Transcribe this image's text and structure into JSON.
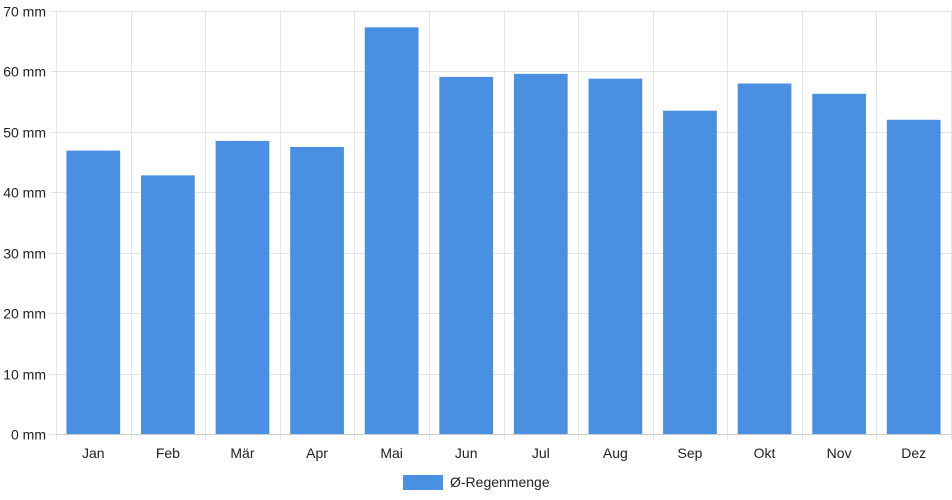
{
  "chart_data": {
    "type": "bar",
    "categories": [
      "Jan",
      "Feb",
      "Mär",
      "Apr",
      "Mai",
      "Jun",
      "Jul",
      "Aug",
      "Sep",
      "Okt",
      "Nov",
      "Dez"
    ],
    "series": [
      {
        "name": "Ø-Regenmenge",
        "color": "#4a90e2",
        "values": [
          46.9,
          42.8,
          48.5,
          47.5,
          67.3,
          59.1,
          59.6,
          58.8,
          53.5,
          58.0,
          56.3,
          52.0
        ]
      }
    ],
    "y_ticks": [
      "0 mm",
      "10 mm",
      "20 mm",
      "30 mm",
      "40 mm",
      "50 mm",
      "60 mm",
      "70 mm"
    ],
    "ylim": [
      0,
      70
    ],
    "y_step": 10,
    "title": "",
    "xlabel": "",
    "ylabel": "",
    "grid": true,
    "legend_position": "bottom-center"
  }
}
